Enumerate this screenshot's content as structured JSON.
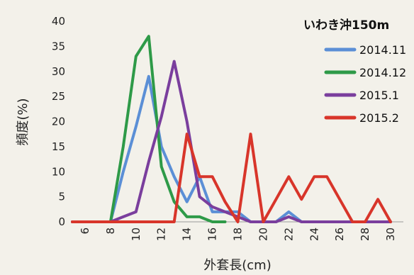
{
  "chart_data": {
    "type": "line",
    "xlabel": "外套長(cm)",
    "ylabel": "頻度(%)",
    "xlim": [
      5,
      31
    ],
    "ylim": [
      0,
      40
    ],
    "x_ticks": [
      "6",
      "8",
      "10",
      "12",
      "14",
      "16",
      "18",
      "20",
      "22",
      "24",
      "26",
      "28",
      "30"
    ],
    "y_ticks": [
      "0",
      "5",
      "10",
      "15",
      "20",
      "25",
      "30",
      "35",
      "40"
    ],
    "legend_title": "いわき沖150m",
    "legend_placement": "top-right",
    "grid": false,
    "series": [
      {
        "name": "2014.11",
        "color": "#5b8fd6",
        "x": [
          5,
          6,
          7,
          8,
          9,
          10,
          11,
          12,
          13,
          14,
          15,
          16,
          17,
          18,
          19,
          20,
          21,
          22,
          23,
          24,
          25,
          26,
          27,
          28,
          29,
          30
        ],
        "y": [
          0,
          0,
          0,
          0,
          10,
          19,
          29,
          15,
          9,
          4,
          9,
          2,
          2,
          2,
          0,
          0,
          0,
          2,
          0,
          0,
          0,
          0,
          0,
          0,
          0,
          0
        ]
      },
      {
        "name": "2014.12",
        "color": "#2e9a48",
        "x": [
          5,
          6,
          7,
          8,
          9,
          10,
          11,
          12,
          13,
          14,
          15,
          16,
          17
        ],
        "y": [
          0,
          0,
          0,
          0,
          15,
          33,
          37,
          11,
          4,
          1,
          1,
          0,
          0
        ]
      },
      {
        "name": "2015.1",
        "color": "#7a3e9d",
        "x": [
          5,
          6,
          7,
          8,
          9,
          10,
          11,
          12,
          13,
          14,
          15,
          16,
          17,
          18,
          19,
          20,
          21,
          22,
          23,
          24,
          25,
          26,
          27,
          28,
          29,
          30
        ],
        "y": [
          0,
          0,
          0,
          0,
          1,
          2,
          12,
          21,
          32,
          20,
          5,
          3,
          2,
          1,
          0,
          0,
          0,
          1,
          0,
          0,
          0,
          0,
          0,
          0,
          0,
          0
        ]
      },
      {
        "name": "2015.2",
        "color": "#d8352a",
        "x": [
          5,
          6,
          7,
          8,
          9,
          10,
          11,
          12,
          13,
          14,
          15,
          16,
          17,
          18,
          19,
          20,
          21,
          22,
          23,
          24,
          25,
          26,
          27,
          28,
          29,
          30
        ],
        "y": [
          0,
          0,
          0,
          0,
          0,
          0,
          0,
          0,
          0,
          17.5,
          9,
          9,
          4,
          0,
          17.5,
          0,
          4.5,
          9,
          4.5,
          9,
          9,
          4.5,
          0,
          0,
          4.5,
          0
        ]
      }
    ]
  }
}
